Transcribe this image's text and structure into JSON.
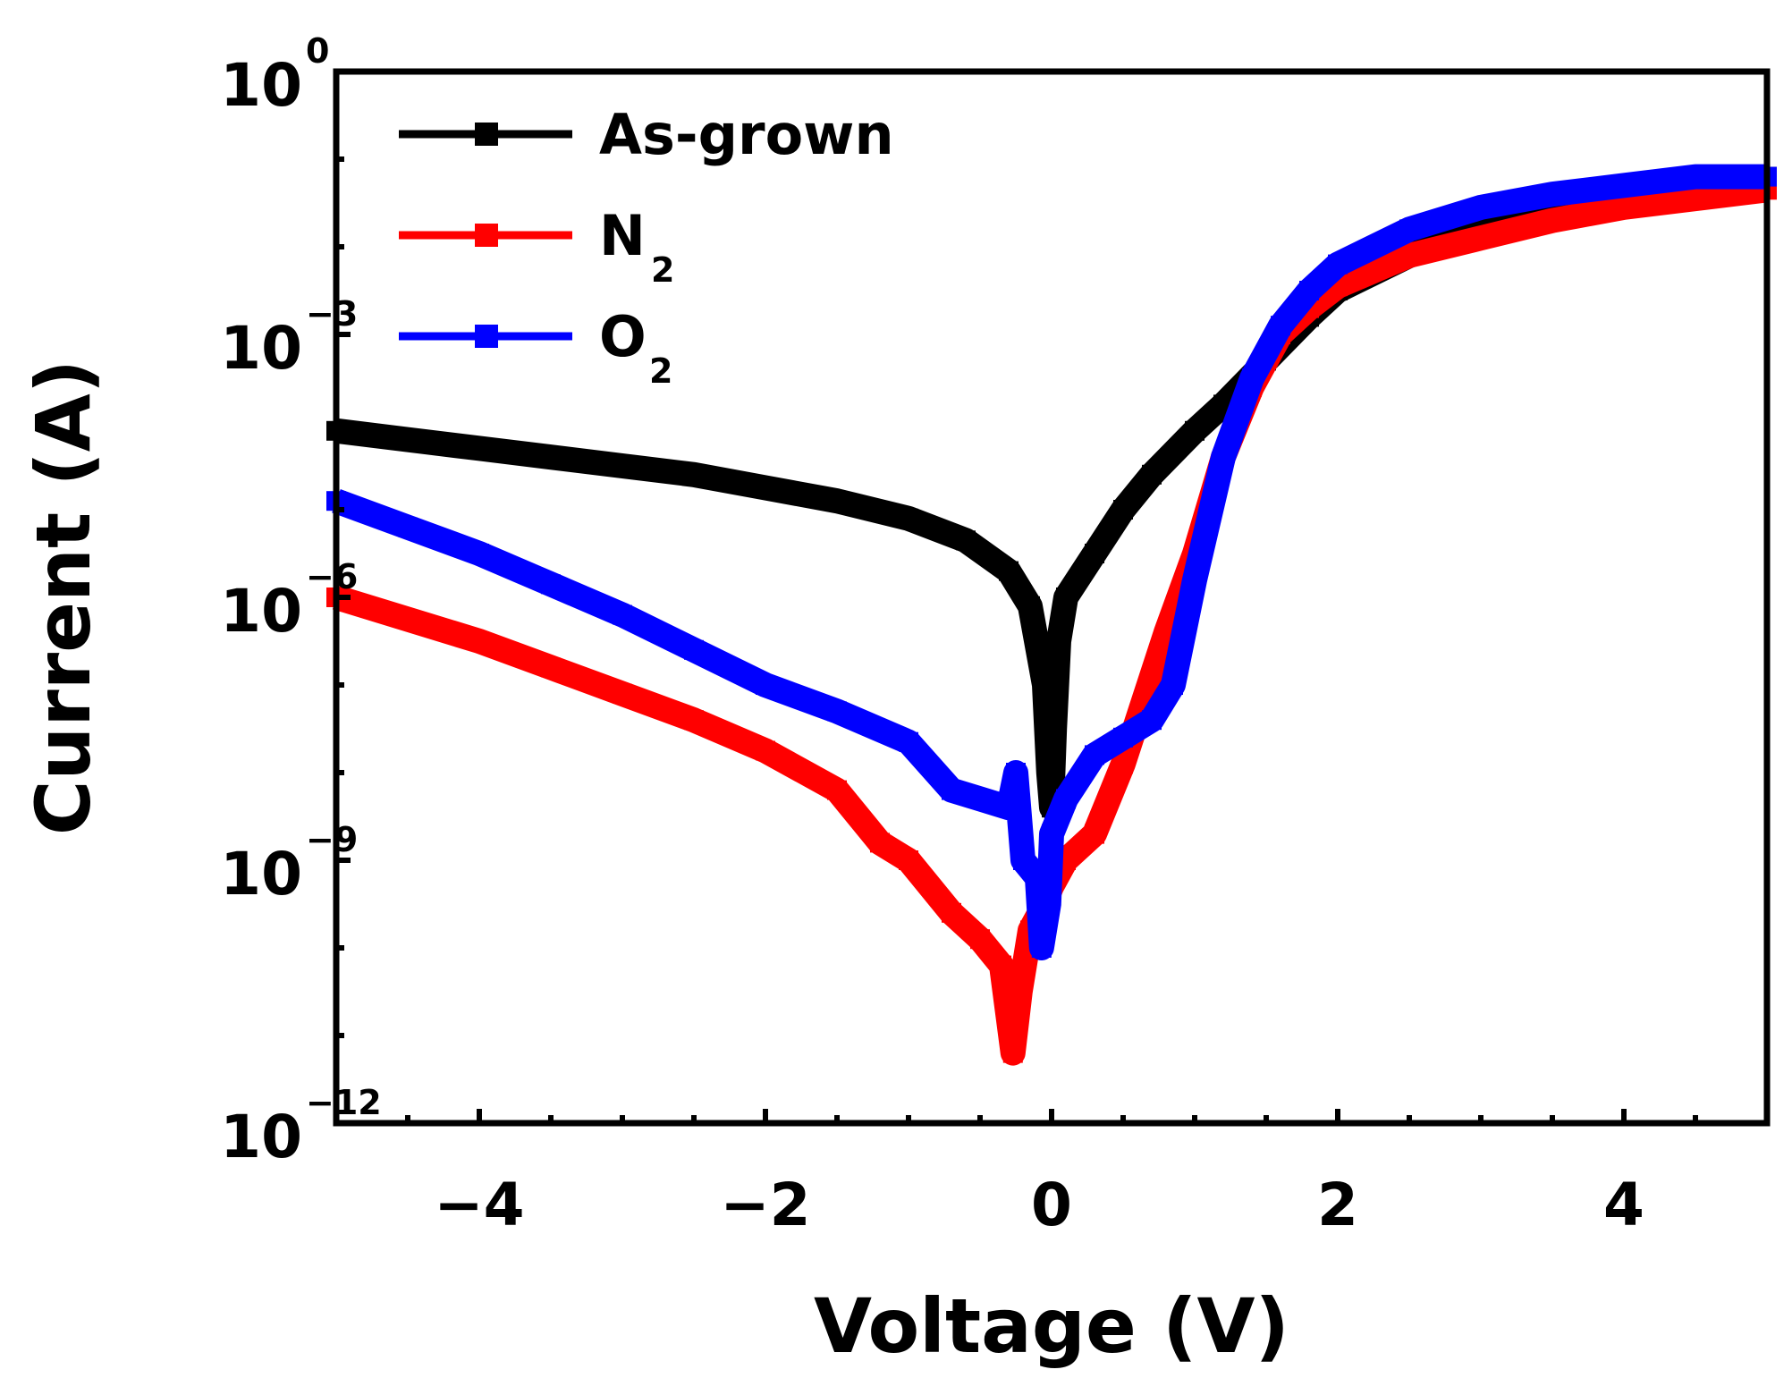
{
  "chart_data": {
    "type": "line",
    "title": "",
    "xlabel": "Voltage (V)",
    "ylabel": "Current (A)",
    "xlim": [
      -5,
      5
    ],
    "ylim_log10": [
      -12,
      0
    ],
    "yscale": "log",
    "legend_position": "top-left",
    "grid": false,
    "x_ticks": [
      {
        "value": -4,
        "label": "−4"
      },
      {
        "value": -2,
        "label": "−2"
      },
      {
        "value": 0,
        "label": "0"
      },
      {
        "value": 2,
        "label": "2"
      },
      {
        "value": 4,
        "label": "4"
      }
    ],
    "y_ticks": [
      {
        "exp": 0,
        "base": "10",
        "sup": "0"
      },
      {
        "exp": -3,
        "base": "10",
        "sup": "−3"
      },
      {
        "exp": -6,
        "base": "10",
        "sup": "−6"
      },
      {
        "exp": -9,
        "base": "10",
        "sup": "−9"
      },
      {
        "exp": -12,
        "base": "10",
        "sup": "−12"
      }
    ],
    "series": [
      {
        "name": "As-grown",
        "legend_text": "As-grown",
        "legend_sub": "",
        "color": "#000000",
        "points": [
          [
            -5.0,
            -4.1
          ],
          [
            -4.5,
            -4.2
          ],
          [
            -4.0,
            -4.3
          ],
          [
            -3.5,
            -4.4
          ],
          [
            -3.0,
            -4.5
          ],
          [
            -2.5,
            -4.6
          ],
          [
            -2.0,
            -4.75
          ],
          [
            -1.5,
            -4.9
          ],
          [
            -1.0,
            -5.1
          ],
          [
            -0.6,
            -5.35
          ],
          [
            -0.3,
            -5.7
          ],
          [
            -0.15,
            -6.1
          ],
          [
            -0.05,
            -7.0
          ],
          [
            -0.02,
            -8.0
          ],
          [
            0.0,
            -8.4
          ],
          [
            0.02,
            -7.5
          ],
          [
            0.05,
            -6.5
          ],
          [
            0.1,
            -6.0
          ],
          [
            0.3,
            -5.5
          ],
          [
            0.5,
            -5.0
          ],
          [
            0.7,
            -4.6
          ],
          [
            1.0,
            -4.1
          ],
          [
            1.2,
            -3.8
          ],
          [
            1.5,
            -3.3
          ],
          [
            1.8,
            -2.8
          ],
          [
            2.0,
            -2.5
          ],
          [
            2.5,
            -2.1
          ],
          [
            3.0,
            -1.8
          ],
          [
            3.5,
            -1.6
          ],
          [
            4.0,
            -1.4
          ],
          [
            4.5,
            -1.3
          ],
          [
            5.0,
            -1.2
          ]
        ]
      },
      {
        "name": "N2",
        "legend_text": "N",
        "legend_sub": "2",
        "color": "#ff0000",
        "points": [
          [
            -5.0,
            -6.0
          ],
          [
            -4.5,
            -6.25
          ],
          [
            -4.0,
            -6.5
          ],
          [
            -3.5,
            -6.8
          ],
          [
            -3.0,
            -7.1
          ],
          [
            -2.5,
            -7.4
          ],
          [
            -2.0,
            -7.75
          ],
          [
            -1.5,
            -8.2
          ],
          [
            -1.2,
            -8.8
          ],
          [
            -1.0,
            -9.0
          ],
          [
            -0.7,
            -9.6
          ],
          [
            -0.5,
            -9.9
          ],
          [
            -0.35,
            -10.2
          ],
          [
            -0.27,
            -11.2
          ],
          [
            -0.22,
            -10.5
          ],
          [
            -0.15,
            -9.8
          ],
          [
            -0.05,
            -9.5
          ],
          [
            0.0,
            -9.3
          ],
          [
            0.1,
            -9.0
          ],
          [
            0.3,
            -8.7
          ],
          [
            0.5,
            -7.9
          ],
          [
            0.6,
            -7.4
          ],
          [
            0.8,
            -6.4
          ],
          [
            1.0,
            -5.5
          ],
          [
            1.2,
            -4.4
          ],
          [
            1.4,
            -3.6
          ],
          [
            1.6,
            -3.0
          ],
          [
            1.8,
            -2.7
          ],
          [
            2.0,
            -2.45
          ],
          [
            2.5,
            -2.1
          ],
          [
            3.0,
            -1.9
          ],
          [
            3.5,
            -1.7
          ],
          [
            4.0,
            -1.55
          ],
          [
            4.5,
            -1.45
          ],
          [
            5.0,
            -1.35
          ]
        ]
      },
      {
        "name": "O2",
        "legend_text": "O",
        "legend_sub": "2",
        "color": "#0000ff",
        "points": [
          [
            -5.0,
            -4.9
          ],
          [
            -4.5,
            -5.2
          ],
          [
            -4.0,
            -5.5
          ],
          [
            -3.5,
            -5.85
          ],
          [
            -3.0,
            -6.2
          ],
          [
            -2.5,
            -6.6
          ],
          [
            -2.0,
            -7.0
          ],
          [
            -1.5,
            -7.3
          ],
          [
            -1.0,
            -7.65
          ],
          [
            -0.7,
            -8.2
          ],
          [
            -0.5,
            -8.3
          ],
          [
            -0.3,
            -8.4
          ],
          [
            -0.25,
            -8.0
          ],
          [
            -0.2,
            -9.0
          ],
          [
            -0.1,
            -9.2
          ],
          [
            -0.07,
            -10.0
          ],
          [
            -0.02,
            -9.5
          ],
          [
            0.0,
            -8.7
          ],
          [
            0.1,
            -8.3
          ],
          [
            0.3,
            -7.8
          ],
          [
            0.5,
            -7.6
          ],
          [
            0.7,
            -7.4
          ],
          [
            0.85,
            -7.0
          ],
          [
            1.0,
            -5.8
          ],
          [
            1.2,
            -4.4
          ],
          [
            1.4,
            -3.5
          ],
          [
            1.6,
            -2.9
          ],
          [
            1.8,
            -2.5
          ],
          [
            2.0,
            -2.2
          ],
          [
            2.5,
            -1.8
          ],
          [
            3.0,
            -1.55
          ],
          [
            3.5,
            -1.4
          ],
          [
            4.0,
            -1.3
          ],
          [
            4.5,
            -1.2
          ],
          [
            5.0,
            -1.2
          ]
        ]
      }
    ]
  }
}
